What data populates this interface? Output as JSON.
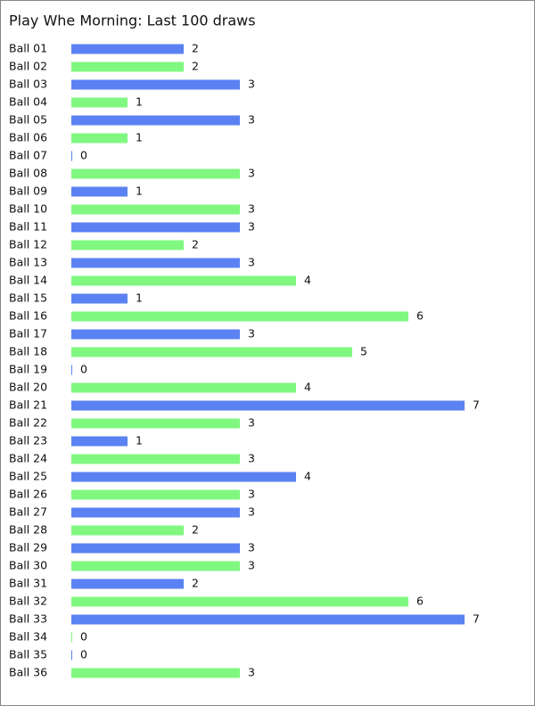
{
  "chart_data": {
    "type": "bar",
    "orientation": "horizontal",
    "title": "Play Whe Morning: Last 100 draws",
    "categories": [
      "Ball 01",
      "Ball 02",
      "Ball 03",
      "Ball 04",
      "Ball 05",
      "Ball 06",
      "Ball 07",
      "Ball 08",
      "Ball 09",
      "Ball 10",
      "Ball 11",
      "Ball 12",
      "Ball 13",
      "Ball 14",
      "Ball 15",
      "Ball 16",
      "Ball 17",
      "Ball 18",
      "Ball 19",
      "Ball 20",
      "Ball 21",
      "Ball 22",
      "Ball 23",
      "Ball 24",
      "Ball 25",
      "Ball 26",
      "Ball 27",
      "Ball 28",
      "Ball 29",
      "Ball 30",
      "Ball 31",
      "Ball 32",
      "Ball 33",
      "Ball 34",
      "Ball 35",
      "Ball 36"
    ],
    "values": [
      2,
      2,
      3,
      1,
      3,
      1,
      0,
      3,
      1,
      3,
      3,
      2,
      3,
      4,
      1,
      6,
      3,
      5,
      0,
      4,
      7,
      3,
      1,
      3,
      4,
      3,
      3,
      2,
      3,
      3,
      2,
      6,
      7,
      0,
      0,
      3
    ],
    "colors": [
      "#5b82f2",
      "#80f880"
    ],
    "xlim": [
      0,
      7
    ]
  }
}
